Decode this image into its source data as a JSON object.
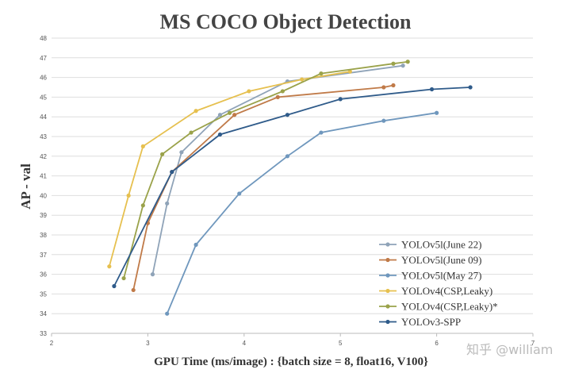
{
  "watermark": "知乎 @william",
  "chart_data": {
    "type": "line",
    "title": "MS COCO Object Detection",
    "xlabel": "GPU Time (ms/image) : {batch size = 8, float16, V100}",
    "ylabel": "AP - val",
    "xlim": [
      2,
      7
    ],
    "ylim": [
      33,
      48
    ],
    "xticks": [
      2,
      3,
      4,
      5,
      6,
      7
    ],
    "yticks": [
      33,
      34,
      35,
      36,
      37,
      38,
      39,
      40,
      41,
      42,
      43,
      44,
      45,
      46,
      47,
      48
    ],
    "grid": "horizontal",
    "legend_position": "bottom-right",
    "series": [
      {
        "name": "YOLOv5l(June 22)",
        "color": "#8fa3b8",
        "x": [
          3.05,
          3.2,
          3.35,
          3.75,
          4.45,
          5.65
        ],
        "y": [
          36.0,
          39.6,
          42.2,
          44.1,
          45.8,
          46.6
        ]
      },
      {
        "name": "YOLOv5l(June 09)",
        "color": "#c07a48",
        "x": [
          2.85,
          3.0,
          3.25,
          3.9,
          4.35,
          5.45,
          5.55
        ],
        "y": [
          35.2,
          38.6,
          41.2,
          44.1,
          45.0,
          45.5,
          45.6
        ]
      },
      {
        "name": "YOLOv5l(May 27)",
        "color": "#6f97bd",
        "x": [
          3.2,
          3.5,
          3.95,
          4.45,
          4.8,
          5.45,
          6.0
        ],
        "y": [
          34.0,
          37.5,
          40.1,
          42.0,
          43.2,
          43.8,
          44.2
        ]
      },
      {
        "name": "YOLOv4(CSP,Leaky)",
        "color": "#e6c04f",
        "x": [
          2.6,
          2.8,
          2.95,
          3.5,
          4.05,
          4.6,
          5.1
        ],
        "y": [
          36.4,
          40.0,
          42.5,
          44.3,
          45.3,
          45.9,
          46.3
        ]
      },
      {
        "name": "YOLOv4(CSP,Leaky)*",
        "color": "#9aa24a",
        "x": [
          2.75,
          2.95,
          3.15,
          3.45,
          3.85,
          4.4,
          4.8,
          5.55,
          5.7
        ],
        "y": [
          35.8,
          39.5,
          42.1,
          43.2,
          44.2,
          45.3,
          46.2,
          46.7,
          46.8
        ]
      },
      {
        "name": "YOLOv3-SPP",
        "color": "#2f5b8a",
        "x": [
          2.65,
          3.25,
          3.75,
          4.45,
          5.0,
          5.95,
          6.35
        ],
        "y": [
          35.4,
          41.2,
          43.1,
          44.1,
          44.9,
          45.4,
          45.5
        ]
      }
    ]
  }
}
